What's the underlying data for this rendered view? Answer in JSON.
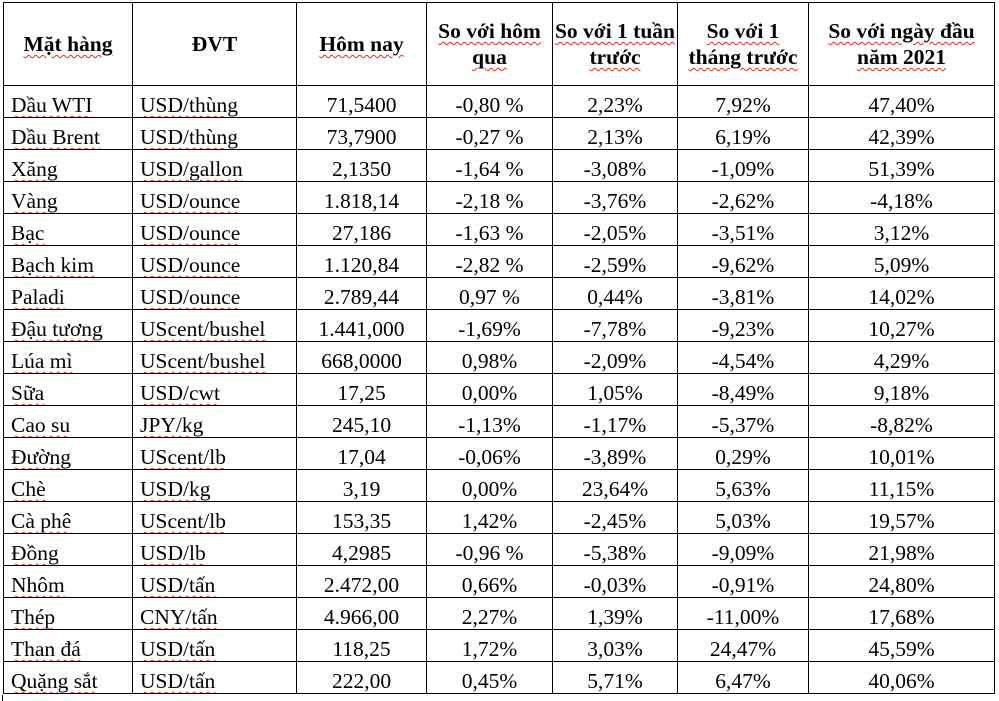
{
  "table": {
    "headers": [
      "Mặt hàng",
      "ĐVT",
      "Hôm nay",
      "So với hôm qua",
      "So với 1 tuần trước",
      "So với 1 tháng trước",
      "So với ngày đầu năm 2021"
    ],
    "rows": [
      [
        "Dầu WTI",
        "USD/thùng",
        "71,5400",
        "-0,80 %",
        "2,23%",
        "7,92%",
        "47,40%"
      ],
      [
        "Dầu Brent",
        "USD/thùng",
        "73,7900",
        "-0,27 %",
        "2,13%",
        "6,19%",
        "42,39%"
      ],
      [
        "Xăng",
        "USD/gallon",
        "2,1350",
        "-1,64 %",
        "-3,08%",
        "-1,09%",
        "51,39%"
      ],
      [
        "Vàng",
        "USD/ounce",
        "1.818,14",
        "-2,18 %",
        "-3,76%",
        "-2,62%",
        "-4,18%"
      ],
      [
        "Bạc",
        "USD/ounce",
        "27,186",
        "-1,63 %",
        "-2,05%",
        "-3,51%",
        "3,12%"
      ],
      [
        "Bạch kim",
        "USD/ounce",
        "1.120,84",
        "-2,82 %",
        "-2,59%",
        "-9,62%",
        "5,09%"
      ],
      [
        "Paladi",
        "USD/ounce",
        "2.789,44",
        "0,97 %",
        "0,44%",
        "-3,81%",
        "14,02%"
      ],
      [
        "Đậu tương",
        "UScent/bushel",
        "1.441,000",
        "-1,69%",
        "-7,78%",
        "-9,23%",
        "10,27%"
      ],
      [
        "Lúa mì",
        "UScent/bushel",
        "668,0000",
        "0,98%",
        "-2,09%",
        "-4,54%",
        "4,29%"
      ],
      [
        "Sữa",
        "USD/cwt",
        "17,25",
        "0,00%",
        "1,05%",
        "-8,49%",
        "9,18%"
      ],
      [
        "Cao su",
        "JPY/kg",
        "245,10",
        "-1,13%",
        "-1,17%",
        "-5,37%",
        "-8,82%"
      ],
      [
        "Đường",
        "UScent/lb",
        "17,04",
        "-0,06%",
        "-3,89%",
        "0,29%",
        "10,01%"
      ],
      [
        "Chè",
        "USD/kg",
        "3,19",
        "0,00%",
        "23,64%",
        "5,63%",
        "11,15%"
      ],
      [
        "Cà phê",
        "UScent/lb",
        "153,35",
        "1,42%",
        "-2,45%",
        "5,03%",
        "19,57%"
      ],
      [
        "Đồng",
        "USD/lb",
        "4,2985",
        "-0,96 %",
        "-5,38%",
        "-9,09%",
        "21,98%"
      ],
      [
        "Nhôm",
        "USD/tấn",
        "2.472,00",
        "0,66%",
        "-0,03%",
        "-0,91%",
        "24,80%"
      ],
      [
        "Thép",
        "CNY/tấn",
        "4.966,00",
        "2,27%",
        "1,39%",
        "-11,00%",
        "17,68%"
      ],
      [
        "Than đá",
        "USD/tấn",
        "118,25",
        "1,72%",
        "3,03%",
        "24,47%",
        "45,59%"
      ],
      [
        "Quặng sắt",
        "USD/tấn",
        "222,00",
        "0,45%",
        "5,71%",
        "6,47%",
        "40,06%"
      ]
    ]
  }
}
